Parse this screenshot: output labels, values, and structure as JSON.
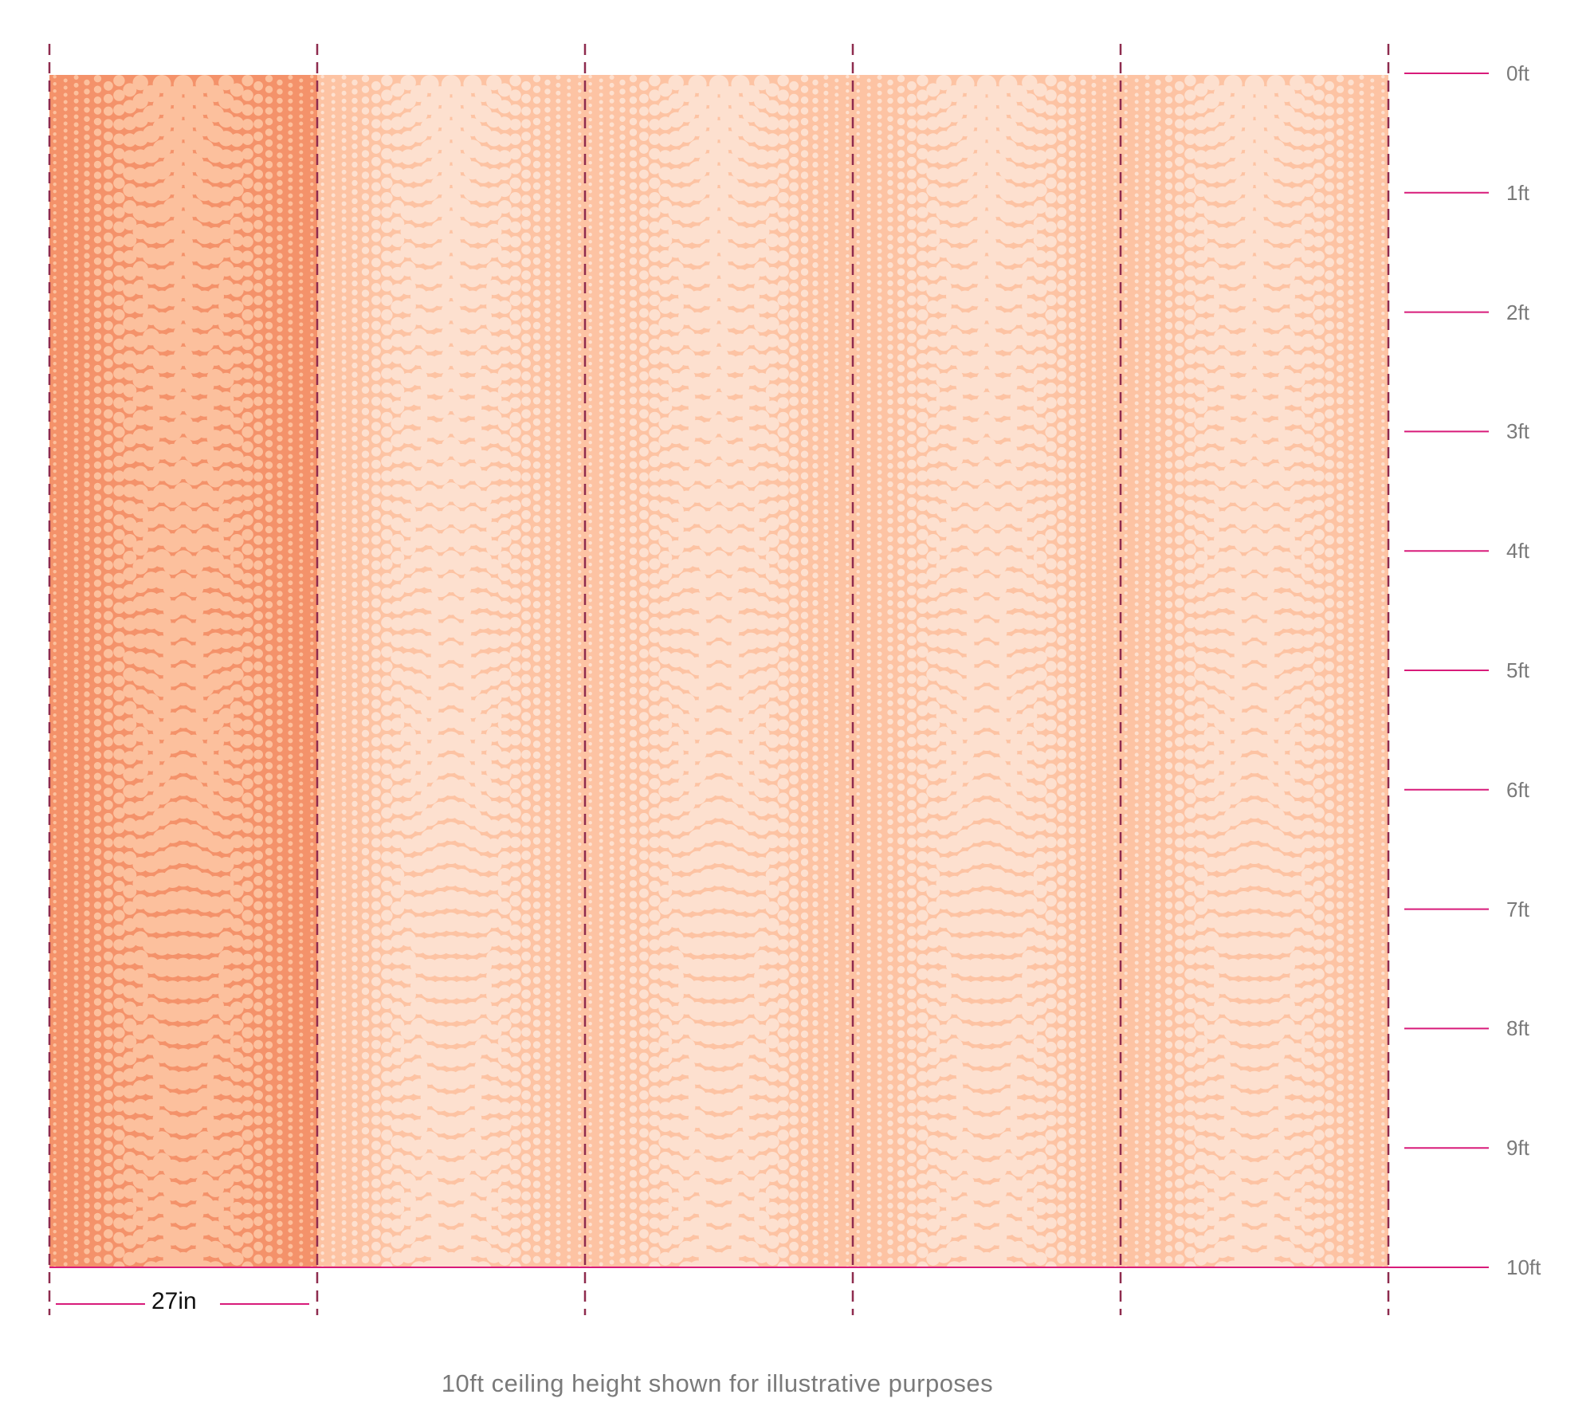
{
  "colors": {
    "panel_highlight": "#f4926a",
    "panel_base": "#fdc3a3",
    "dot_on_highlight": "#fcc09d",
    "dot_on_base": "#fde0cf",
    "panel_divider": "#8e2b4e",
    "ruler_tick": "#d81b7a",
    "ruler_text": "#7a7a7a"
  },
  "wall": {
    "panel_count": 5,
    "highlighted_panel_index": 0,
    "panel_width_label": "27in",
    "height_ft": 10
  },
  "ruler": {
    "labels": [
      "0ft",
      "1ft",
      "2ft",
      "3ft",
      "4ft",
      "5ft",
      "6ft",
      "7ft",
      "8ft",
      "9ft",
      "10ft"
    ]
  },
  "caption": "10ft ceiling height shown for illustrative purposes"
}
